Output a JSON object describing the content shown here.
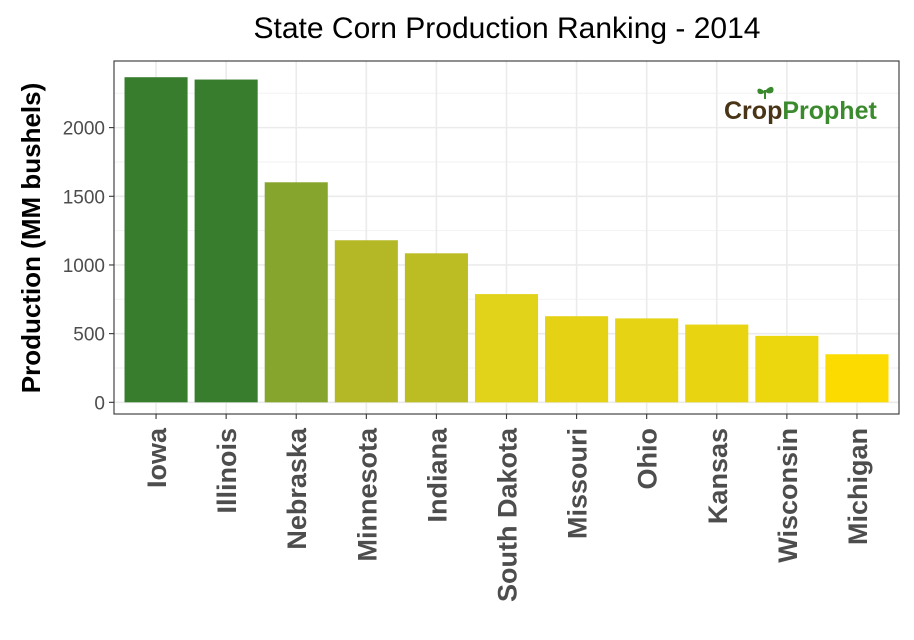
{
  "chart_data": {
    "type": "bar",
    "title": "State Corn Production Ranking - 2014",
    "xlabel": "",
    "ylabel": "Production (MM bushels)",
    "categories": [
      "Iowa",
      "Illinois",
      "Nebraska",
      "Minnesota",
      "Indiana",
      "South Dakota",
      "Missouri",
      "Ohio",
      "Kansas",
      "Wisconsin",
      "Michigan"
    ],
    "values": [
      2367,
      2350,
      1602,
      1180,
      1085,
      788,
      627,
      611,
      566,
      484,
      350
    ],
    "colors": [
      "#387d2e",
      "#387d2e",
      "#86a52c",
      "#b4b826",
      "#bcbc23",
      "#e1d319",
      "#e5d215",
      "#e6d314",
      "#e8d410",
      "#ecd60e",
      "#fcdc00"
    ],
    "yticks": [
      0,
      500,
      1000,
      1500,
      2000
    ],
    "ylim": [
      -85,
      2485
    ],
    "grid": true
  },
  "watermark": {
    "part1": "Cr",
    "part2": "o",
    "part3": "p",
    "part4": "Prophet",
    "color_dark": "#4a3417",
    "color_green": "#3b8a2e"
  }
}
